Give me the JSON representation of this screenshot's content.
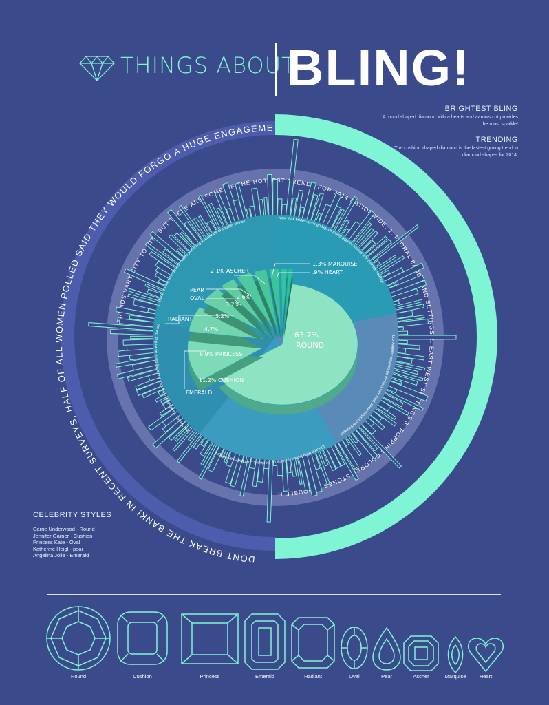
{
  "header": {
    "title_small": "THINGS ABOUT",
    "title_big": "BLING!",
    "logo_icon": "diamond-icon"
  },
  "side_notes": [
    {
      "heading": "BRIGHTEST BLING",
      "body": "A round shaped diamond with a hearts and aarows cut provides the most sparkle!"
    },
    {
      "heading": "TRENDING",
      "body": "The cushion shaped diamond is the fastest groing trend in diamond shapes for 2014."
    }
  ],
  "ring_text": {
    "outer": "DONT BREAK THE BANK! IN RECENT SURVEYS, HALF OF ALL WOMEN POLLED SAID THEY WOULD FORGO A HUGE ENGAGEMENT RING IN ORDER TO PUT MONEY TOWARD A DOWN PAYMENT ON A HOUSE",
    "middle": "TRENDS VARY CITY TO CITY BUT THESE ARE SOME OF THE HOTTEST TRENDS FOR 2014 NATIONWIDE: 1. FLORAL BANDS AND SETTINGS 2. EAST WEST SETTINGS 3. POPPING COLORED STONES 4. DOUBLE HALO SETTINGS 5. MIXED METAL BANDS 6. DAINTY SETTINGS AND BANDS"
  },
  "city_notes": [
    "In Miami, it's the reverse with brides preferring a multitude of smaller stones",
    "New York brides-to-be go big, choosing gigantic stones with delicate settings",
    "Los Angeles couples go for bold with loud, show-stopping extravaganzas",
    "Chicago bling buyers typically go for classic cuts and clean designs",
    "For Texans, it's all about a big rock and a big band as well as the rock"
  ],
  "chart_data": {
    "type": "pie",
    "categories": [
      "Round",
      "Cushion",
      "Princess",
      "Radiant",
      "Emerald",
      "Pear",
      "Oval",
      "Ascher",
      "Marquise",
      "Heart"
    ],
    "values": [
      63.7,
      11.2,
      6.9,
      4.7,
      3.2,
      3.2,
      2.6,
      2.1,
      1.3,
      0.9
    ],
    "labels": [
      "63.7%",
      "11.2% CUSHION",
      "6.9% PRINCESS",
      "4.7%",
      "3.2%",
      "3.2%",
      "2.6%",
      "2.1% ASCHER",
      "1.3% MARQUISE",
      ".9% HEART"
    ],
    "callouts": [
      "ROUND",
      "RADIANT",
      "EMERALD",
      "PEAR",
      "OVAL"
    ]
  },
  "celebrity": {
    "heading": "CELEBRITY STYLES",
    "rows": [
      "Carrie Underwood - Round",
      "Jennifer Garner - Cushion",
      "Princess Kate - Oval",
      "Katherine Heigl - pear",
      "Angelina Jolie - Emerald"
    ]
  },
  "shapes": [
    {
      "label": "Round",
      "icon": "round-cut-icon"
    },
    {
      "label": "Cushion",
      "icon": "cushion-cut-icon"
    },
    {
      "label": "Princess",
      "icon": "princess-cut-icon"
    },
    {
      "label": "Emerald",
      "icon": "emerald-cut-icon"
    },
    {
      "label": "Radiant",
      "icon": "radiant-cut-icon"
    },
    {
      "label": "Oval",
      "icon": "oval-cut-icon"
    },
    {
      "label": "Pear",
      "icon": "pear-cut-icon"
    },
    {
      "label": "Ascher",
      "icon": "ascher-cut-icon"
    },
    {
      "label": "Marquise",
      "icon": "marquise-cut-icon"
    },
    {
      "label": "Heart",
      "icon": "heart-cut-icon"
    }
  ],
  "colors": {
    "background": "#3a4a8a",
    "mint": "#7ff5d6",
    "teal": "#2a9fb5"
  }
}
